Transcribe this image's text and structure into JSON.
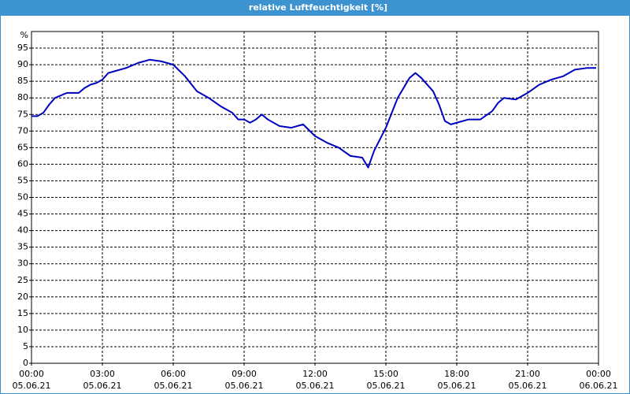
{
  "chart_data": {
    "type": "line",
    "title": "relative Luftfeuchtigkeit [%]",
    "y_label": "%",
    "xlim": [
      0,
      24
    ],
    "xticks": [
      {
        "value": 0,
        "label": [
          "00:00",
          "05.06.21"
        ]
      },
      {
        "value": 3,
        "label": [
          "03:00",
          "05.06.21"
        ]
      },
      {
        "value": 6,
        "label": [
          "06:00",
          "05.06.21"
        ]
      },
      {
        "value": 9,
        "label": [
          "09:00",
          "05.06.21"
        ]
      },
      {
        "value": 12,
        "label": [
          "12:00",
          "05.06.21"
        ]
      },
      {
        "value": 15,
        "label": [
          "15:00",
          "05.06.21"
        ]
      },
      {
        "value": 18,
        "label": [
          "18:00",
          "05.06.21"
        ]
      },
      {
        "value": 21,
        "label": [
          "21:00",
          "05.06.21"
        ]
      },
      {
        "value": 24,
        "label": [
          "00:00",
          "06.06.21"
        ]
      }
    ],
    "ylim": [
      0,
      100
    ],
    "yticks": [
      0,
      5,
      10,
      15,
      20,
      25,
      30,
      35,
      40,
      45,
      50,
      55,
      60,
      65,
      70,
      75,
      80,
      85,
      90,
      95
    ],
    "grid": true,
    "series": [
      {
        "name": "relative Luftfeuchtigkeit",
        "color": "#0000c0",
        "x": [
          0,
          0.25,
          0.5,
          0.75,
          1,
          1.5,
          2,
          2.25,
          2.5,
          2.75,
          3,
          3.25,
          3.5,
          4,
          4.5,
          5,
          5.5,
          6,
          6.5,
          7,
          7.5,
          8,
          8.5,
          8.75,
          9,
          9.25,
          9.5,
          9.75,
          10,
          10.5,
          11,
          11.5,
          12,
          12.5,
          13,
          13.5,
          14,
          14.25,
          14.5,
          15,
          15.5,
          16,
          16.25,
          16.5,
          17,
          17.25,
          17.5,
          17.75,
          18,
          18.5,
          19,
          19.5,
          19.75,
          20,
          20.5,
          21,
          21.5,
          22,
          22.5,
          23,
          23.5,
          23.9
        ],
        "values": [
          74.5,
          74.5,
          75.5,
          78,
          80,
          81.5,
          81.5,
          83,
          84,
          84.5,
          85.5,
          87.5,
          88,
          89,
          90.5,
          91.5,
          91,
          90,
          86.5,
          82,
          80,
          77.5,
          75.5,
          73.5,
          73.5,
          72.5,
          73.5,
          75,
          73.5,
          71.5,
          71,
          72,
          68.5,
          66.5,
          65,
          62.5,
          62,
          59,
          64,
          71,
          80,
          86,
          87.5,
          86,
          82,
          78,
          73,
          72,
          72.5,
          73.5,
          73.5,
          76,
          78.5,
          80,
          79.5,
          81.5,
          84,
          85.5,
          86.5,
          88.5,
          89,
          89
        ]
      }
    ]
  }
}
